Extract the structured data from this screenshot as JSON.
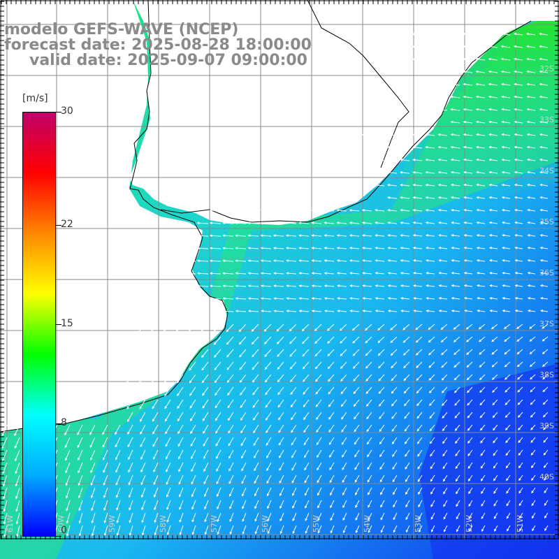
{
  "title": {
    "line1": "modelo GEFS-WAVE (NCEP)",
    "line2": "forecast date: 2025-08-28 18:00:00",
    "line3": "valid date: 2025-09-07 09:00:00"
  },
  "colorbar": {
    "unit": "[m/s]",
    "ticks": [
      "30",
      "22",
      "15",
      "8",
      "0"
    ],
    "tick_values": [
      30,
      22,
      15,
      8,
      0
    ],
    "range": [
      0,
      30
    ],
    "colors": [
      "#0000ff",
      "#00aaff",
      "#00ffff",
      "#00ff00",
      "#ffff00",
      "#ff8800",
      "#ff0000",
      "#c0006a"
    ]
  },
  "map": {
    "lat_labels": [
      "32S",
      "33S",
      "34S",
      "35S",
      "36S",
      "37S",
      "38S",
      "39S",
      "40S"
    ],
    "lon_labels": [
      "61W",
      "60W",
      "59W",
      "58W",
      "57W",
      "56W",
      "55W",
      "54W",
      "53W",
      "52W",
      "51W"
    ],
    "land_color": "#ffffff",
    "coast_color": "#000000",
    "grid_color": "#888888",
    "arrow_color": "#ffffff"
  }
}
